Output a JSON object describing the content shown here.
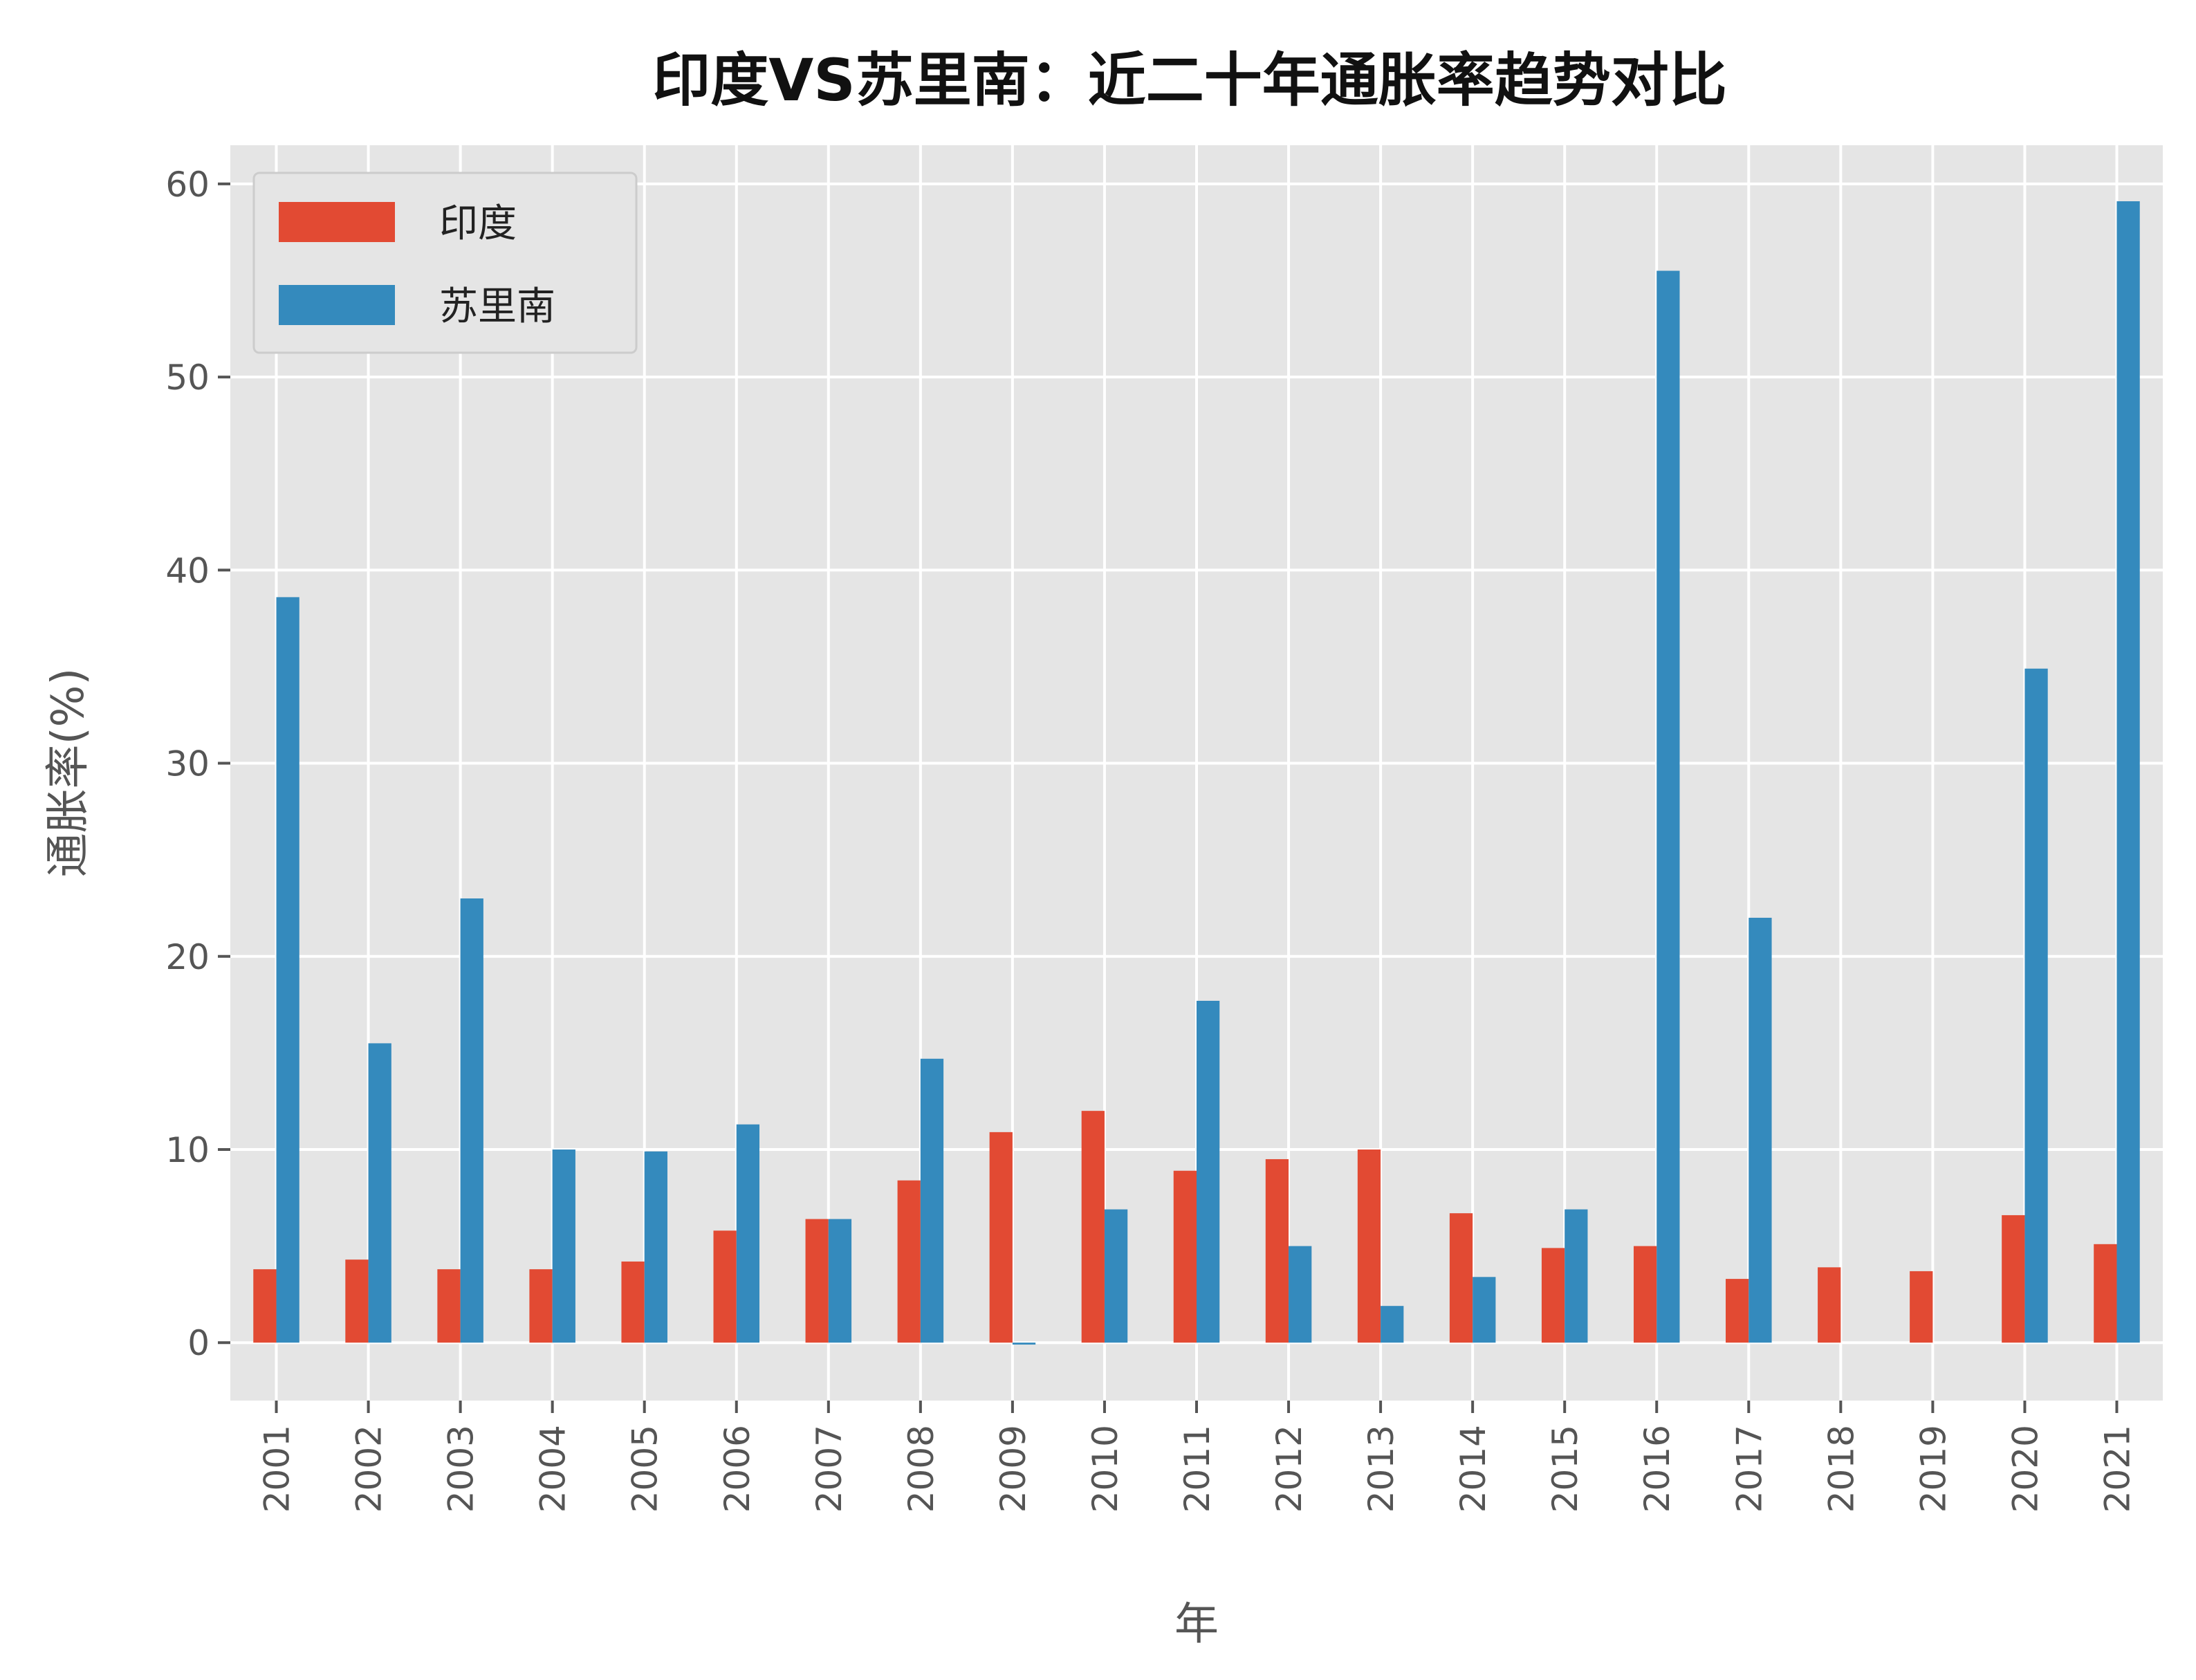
{
  "chart_data": {
    "type": "bar",
    "title": "印度VS苏里南：近二十年通胀率趋势对比",
    "xlabel": "年",
    "ylabel": "通胀率(%)",
    "ylim": [
      -3,
      62
    ],
    "yticks": [
      0,
      10,
      20,
      30,
      40,
      50,
      60
    ],
    "grid": true,
    "legend_position": "top-left",
    "categories": [
      "2001",
      "2002",
      "2003",
      "2004",
      "2005",
      "2006",
      "2007",
      "2008",
      "2009",
      "2010",
      "2011",
      "2012",
      "2013",
      "2014",
      "2015",
      "2016",
      "2017",
      "2018",
      "2019",
      "2020",
      "2021"
    ],
    "series": [
      {
        "name": "印度",
        "color": "#E24A33",
        "values": [
          3.8,
          4.3,
          3.8,
          3.8,
          4.2,
          5.8,
          6.4,
          8.4,
          10.9,
          12.0,
          8.9,
          9.5,
          10.0,
          6.7,
          4.9,
          5.0,
          3.3,
          3.9,
          3.7,
          6.6,
          5.1
        ]
      },
      {
        "name": "苏里南",
        "color": "#348ABD",
        "values": [
          38.6,
          15.5,
          23.0,
          10.0,
          9.9,
          11.3,
          6.4,
          14.7,
          -0.1,
          6.9,
          17.7,
          5.0,
          1.9,
          3.4,
          6.9,
          55.5,
          22.0,
          null,
          null,
          34.9,
          59.1
        ]
      }
    ]
  }
}
